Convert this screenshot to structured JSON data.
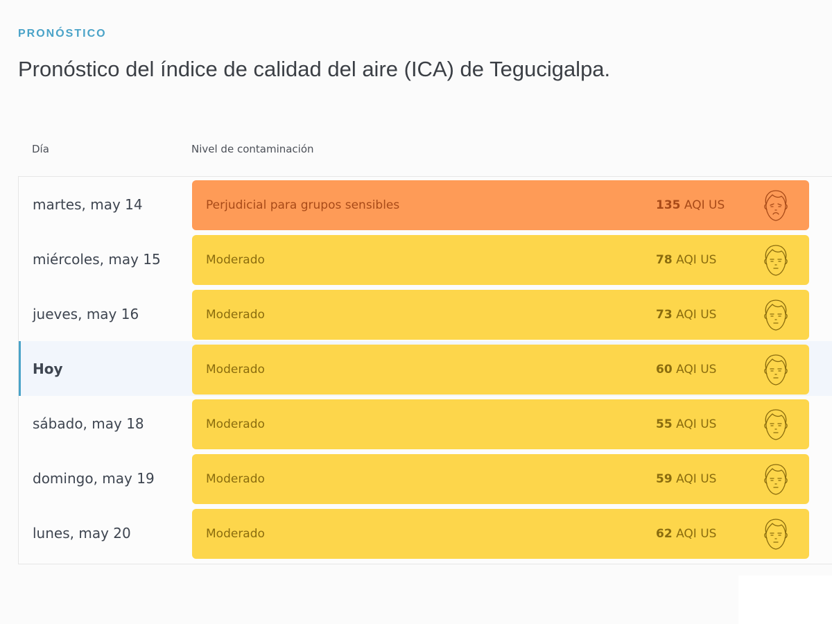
{
  "header": {
    "eyebrow": "PRONÓSTICO",
    "title": "Pronóstico del índice de calidad del aire (ICA) de Tegucigalpa."
  },
  "table": {
    "columns": {
      "day": "Día",
      "level": "Nivel de contaminación"
    },
    "unit": "AQI US",
    "colors": {
      "orange": "#fe9b57",
      "yellow": "#fdd64b",
      "orange_text": "#a84a18",
      "yellow_text": "#8a6c0e",
      "today_accent": "#4aa3c8"
    },
    "rows": [
      {
        "day": "martes, may 14",
        "level": "Perjudicial para grupos sensibles",
        "aqi": "135",
        "unit": "AQI US",
        "face": "sad-face-icon",
        "color": "orange"
      },
      {
        "day": "miércoles, may 15",
        "level": "Moderado",
        "aqi": "78",
        "unit": "AQI US",
        "face": "neutral-face-icon",
        "color": "yellow"
      },
      {
        "day": "jueves, may 16",
        "level": "Moderado",
        "aqi": "73",
        "unit": "AQI US",
        "face": "neutral-face-icon",
        "color": "yellow"
      },
      {
        "day": "Hoy",
        "level": "Moderado",
        "aqi": "60",
        "unit": "AQI US",
        "face": "neutral-face-icon",
        "color": "yellow",
        "today": true
      },
      {
        "day": "sábado, may 18",
        "level": "Moderado",
        "aqi": "55",
        "unit": "AQI US",
        "face": "neutral-face-icon",
        "color": "yellow"
      },
      {
        "day": "domingo, may 19",
        "level": "Moderado",
        "aqi": "59",
        "unit": "AQI US",
        "face": "neutral-face-icon",
        "color": "yellow"
      },
      {
        "day": "lunes, may 20",
        "level": "Moderado",
        "aqi": "62",
        "unit": "AQI US",
        "face": "neutral-face-icon",
        "color": "yellow"
      }
    ]
  }
}
